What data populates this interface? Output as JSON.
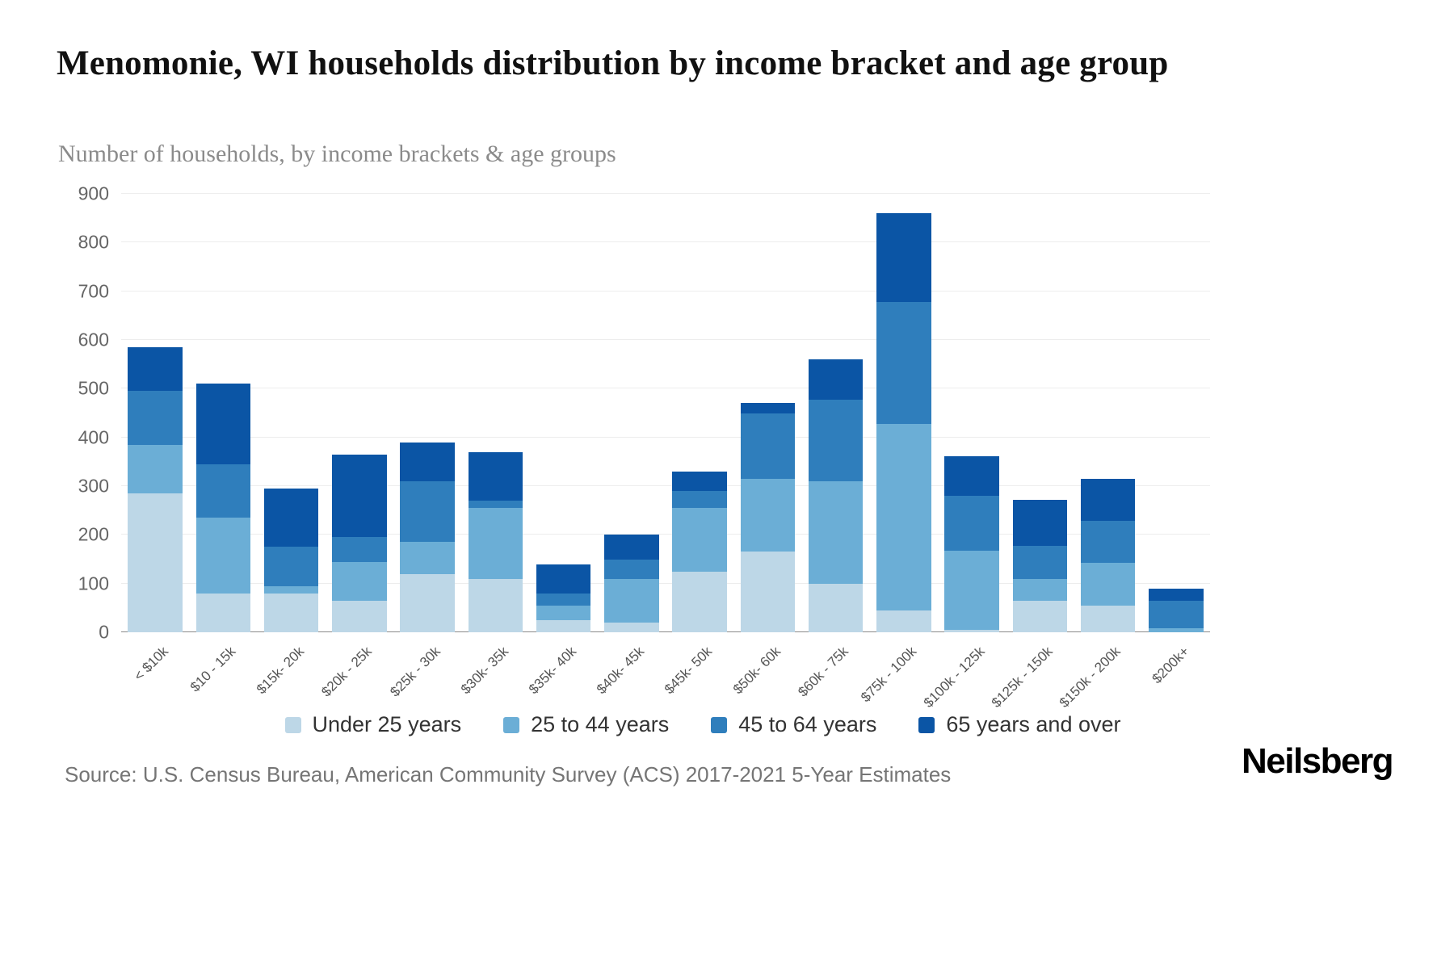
{
  "page": {
    "title": "Menomonie, WI households distribution by income bracket and age group",
    "subtitle": "Number of households, by income brackets & age groups",
    "source": "Source: U.S. Census Bureau, American Community Survey (ACS) 2017-2021 5-Year Estimates",
    "brand": "Neilsberg"
  },
  "chart_data": {
    "type": "bar",
    "stacked": true,
    "title": "Menomonie, WI households distribution by income bracket and age group",
    "subtitle": "Number of households, by income brackets & age groups",
    "xlabel": "",
    "ylabel": "Number of households",
    "ylim": [
      0,
      900
    ],
    "ytick_step": 100,
    "grid": "horizontal",
    "legend_position": "bottom",
    "categories": [
      "< $10k",
      "$10 - 15k",
      "$15k- 20k",
      "$20k - 25k",
      "$25k - 30k",
      "$30k- 35k",
      "$35k- 40k",
      "$40k- 45k",
      "$45k- 50k",
      "$50k- 60k",
      "$60k - 75k",
      "$75k - 100k",
      "$100k - 125k",
      "$125k - 150k",
      "$150k - 200k",
      "$200k+"
    ],
    "series": [
      {
        "name": "Under 25 years",
        "color": "#bdd7e7",
        "values": [
          285,
          80,
          80,
          65,
          120,
          110,
          25,
          20,
          125,
          165,
          100,
          45,
          5,
          65,
          55,
          0
        ]
      },
      {
        "name": "25 to 44 years",
        "color": "#6baed6",
        "values": [
          100,
          155,
          15,
          80,
          65,
          145,
          30,
          90,
          130,
          150,
          210,
          383,
          163,
          45,
          87,
          8
        ]
      },
      {
        "name": "45 to 64 years",
        "color": "#2f7ebc",
        "values": [
          110,
          110,
          80,
          50,
          125,
          15,
          25,
          40,
          35,
          135,
          168,
          250,
          112,
          68,
          86,
          57
        ]
      },
      {
        "name": "65 years and over",
        "color": "#0b55a5",
        "values": [
          90,
          165,
          120,
          170,
          80,
          100,
          60,
          50,
          40,
          20,
          82,
          182,
          82,
          94,
          87,
          25
        ]
      }
    ]
  }
}
